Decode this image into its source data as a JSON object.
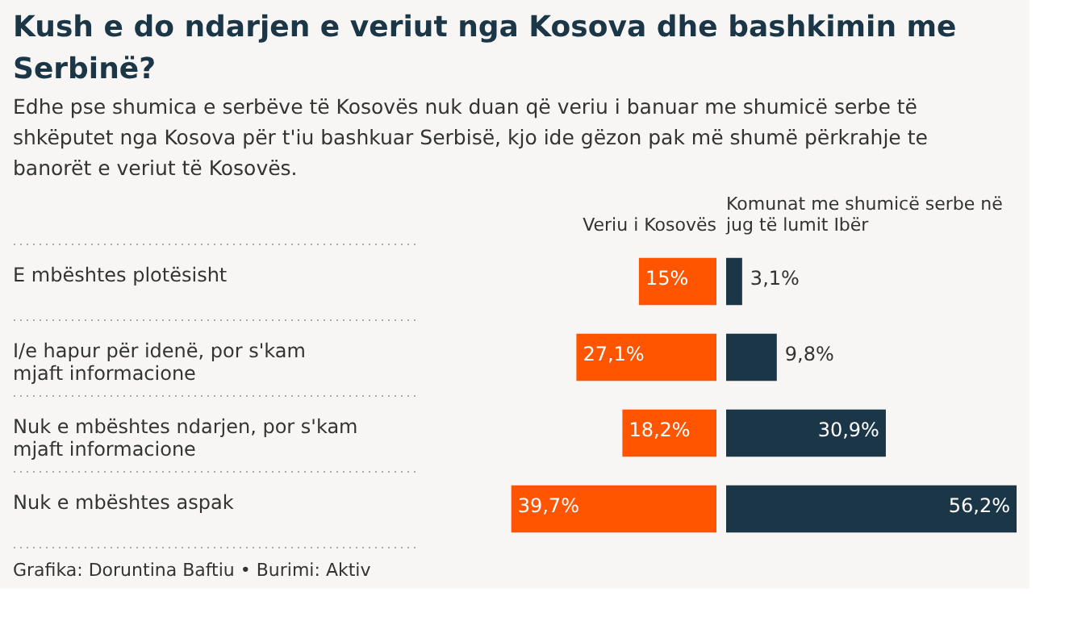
{
  "chart_data": [
    {
      "type": "bar",
      "orientation": "horizontal",
      "title": "Kush e do ndarjen e veriut nga Kosova dhe bashkimin me Serbinë?",
      "subtitle": "Edhe pse shumica e serbëve të Kosovës nuk duan që veriu i banuar me shumicë serbe të shkëputet nga Kosova për t'iu bashkuar Serbisë, kjo ide gëzon pak më shumë përkrahje te banorët e veriut të Kosovës.",
      "categories": [
        "E mbështes plotësisht",
        "I/e hapur për idenë, por s'kam mjaft informacione",
        "Nuk e mbështes ndarjen, por s'kam mjaft informacione",
        "Nuk e mbështes aspak"
      ],
      "series": [
        {
          "name": "Veriu i Kosovës",
          "color": "#ff5500",
          "values": [
            15,
            27.1,
            18.2,
            39.7
          ],
          "value_labels": [
            "15%",
            "27,1%",
            "18,2%",
            "39,7%"
          ]
        }
      ],
      "grid": "y",
      "tick_labels": "y",
      "annotations": [
        "Grafika: Doruntina Baftiu • Burimi: Aktiv"
      ]
    },
    {
      "type": "bar",
      "orientation": "horizontal",
      "categories": [
        null,
        null,
        null,
        null
      ],
      "series": [
        {
          "name": "Komunat me shumicë serbe në jug të lumit Ibër",
          "color": "#1b3647",
          "values": [
            3.1,
            9.8,
            30.9,
            56.2
          ],
          "value_labels": [
            "3,1%",
            "9,8%",
            "30,9%",
            "56,2%"
          ]
        }
      ],
      "grid": "y",
      "tick_labels": false
    }
  ]
}
